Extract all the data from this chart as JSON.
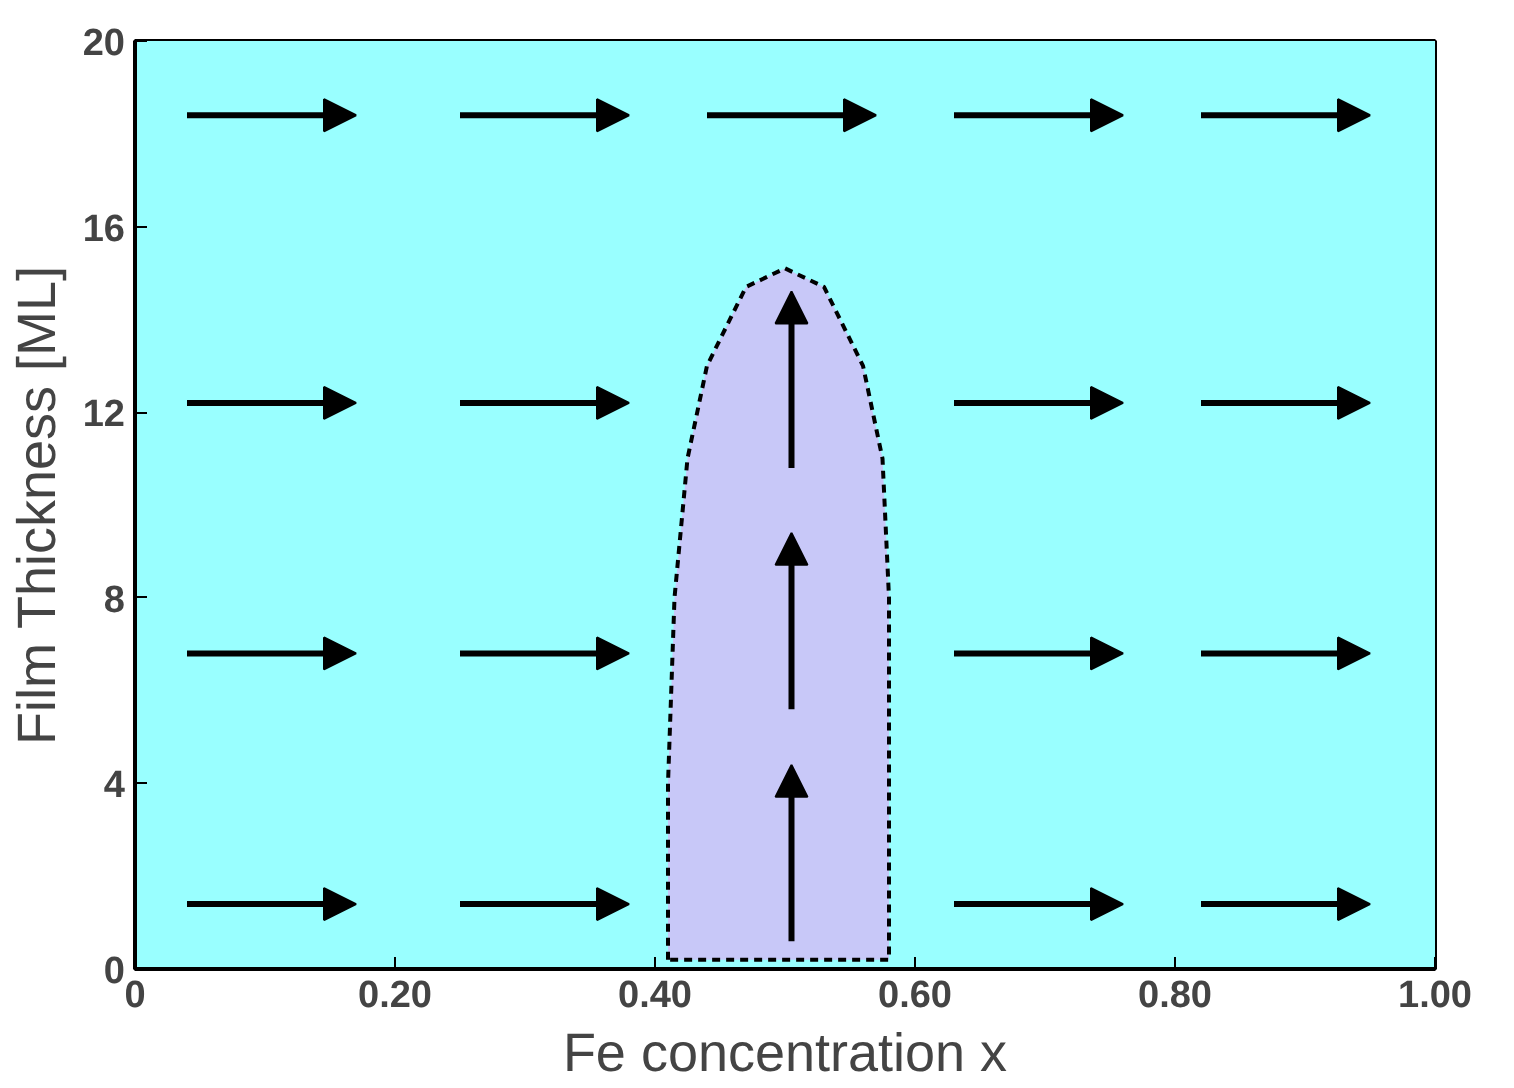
{
  "chart_data": {
    "type": "area",
    "xlabel": "Fe concentration x",
    "ylabel": "Film Thickness [ML]",
    "xlim": [
      0,
      1
    ],
    "ylim": [
      0,
      20
    ],
    "xticks": [
      0,
      {
        "value": 0.2,
        "label": "0.20"
      },
      {
        "value": 0.4,
        "label": "0.40"
      },
      {
        "value": 0.6,
        "label": "0.60"
      },
      {
        "value": 0.8,
        "label": "0.80"
      },
      {
        "value": 1.0,
        "label": "1.00"
      }
    ],
    "yticks": [
      0,
      4,
      8,
      12,
      16,
      20
    ],
    "line_style": "dashed",
    "bands": [
      {
        "axis": "x",
        "from": 0,
        "to": 1,
        "color": "#99ffff"
      }
    ],
    "series": [
      {
        "color": "#c8c8f8",
        "x": [
          0.41,
          0.41,
          0.415,
          0.425,
          0.44,
          0.47,
          0.5,
          0.53,
          0.56,
          0.575,
          0.58,
          0.58
        ],
        "values": [
          0.2,
          4,
          8,
          11,
          13,
          14.7,
          15.1,
          14.7,
          13,
          11,
          8,
          0.2
        ]
      }
    ]
  }
}
